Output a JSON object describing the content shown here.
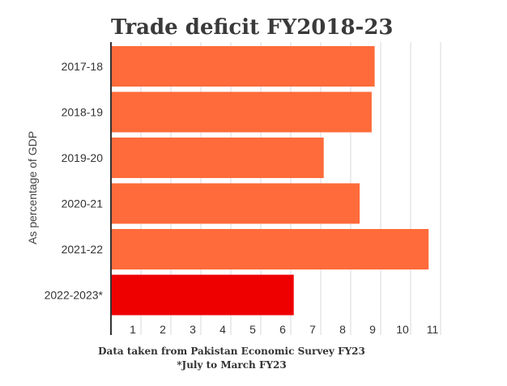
{
  "chart_data": {
    "type": "bar",
    "orientation": "horizontal",
    "title": "Trade deficit FY2018-23",
    "ylabel": "As percentage of GDP",
    "xlabel": "",
    "categories": [
      "2017-18",
      "2018-19",
      "2019-20",
      "2020-21",
      "2021-22",
      "2022-2023*"
    ],
    "values": [
      8.8,
      8.7,
      7.1,
      8.3,
      10.6,
      6.1
    ],
    "bar_colors": [
      "#ff6b3a",
      "#ff6b3a",
      "#ff6b3a",
      "#ff6b3a",
      "#ff6b3a",
      "#ee0000"
    ],
    "x_ticks": [
      1,
      2,
      3,
      4,
      5,
      6,
      7,
      8,
      9,
      10,
      11
    ],
    "xlim": [
      0,
      11
    ],
    "grid": true,
    "legend": "none",
    "notes": [
      "Data taken from Pakistan Economic Survey FY23",
      "*July to March FY23"
    ]
  }
}
